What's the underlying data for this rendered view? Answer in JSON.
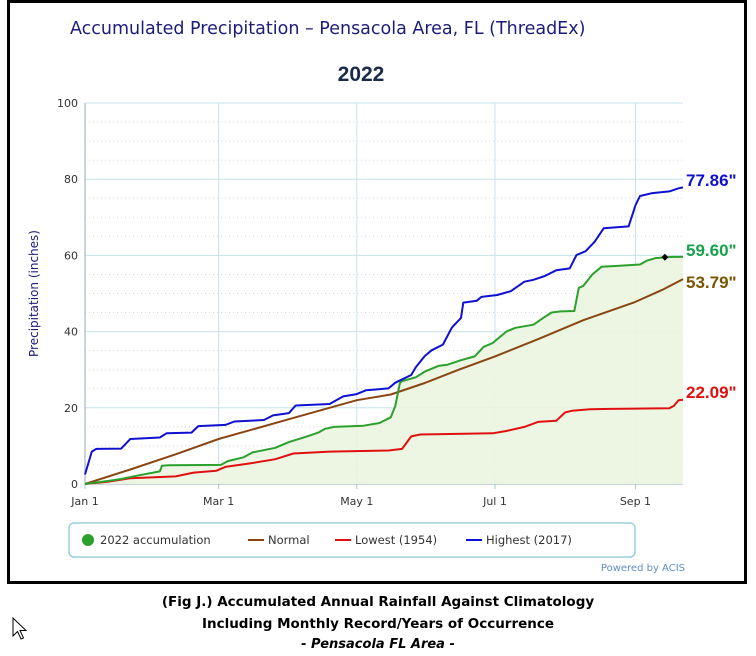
{
  "chart_data": {
    "type": "line",
    "title": "Accumulated Precipitation – Pensacola Area, FL (ThreadEx)",
    "subtitle": "2022",
    "ylabel": "Precipitation (inches)",
    "xlabel": "",
    "ylim": [
      0,
      100
    ],
    "yticks": [
      "0",
      "20",
      "40",
      "60",
      "80",
      "100"
    ],
    "xticks": [
      {
        "label": "Jan 1",
        "day": 0
      },
      {
        "label": "Mar 1",
        "day": 59
      },
      {
        "label": "May 1",
        "day": 120
      },
      {
        "label": "Jul 1",
        "day": 181
      },
      {
        "label": "Sep 1",
        "day": 243
      }
    ],
    "xlim_days": [
      0,
      264
    ],
    "grid": true,
    "legend_placement": "bottom",
    "series": [
      {
        "name": "Highest (2017)",
        "color": "#1010d0",
        "end_label": "77.86\"",
        "points": [
          [
            0,
            2.5
          ],
          [
            3,
            8.5
          ],
          [
            5,
            9.2
          ],
          [
            16,
            9.3
          ],
          [
            20,
            11.8
          ],
          [
            33,
            12.2
          ],
          [
            36,
            13.3
          ],
          [
            47,
            13.5
          ],
          [
            50,
            15.2
          ],
          [
            62,
            15.5
          ],
          [
            66,
            16.4
          ],
          [
            79,
            16.8
          ],
          [
            83,
            18.0
          ],
          [
            90,
            18.6
          ],
          [
            93,
            20.6
          ],
          [
            108,
            21.0
          ],
          [
            114,
            23.0
          ],
          [
            120,
            23.6
          ],
          [
            124,
            24.6
          ],
          [
            134,
            25.1
          ],
          [
            137,
            26.6
          ],
          [
            144,
            28.6
          ],
          [
            146,
            30.6
          ],
          [
            150,
            33.6
          ],
          [
            153,
            35.1
          ],
          [
            158,
            36.6
          ],
          [
            162,
            41.1
          ],
          [
            166,
            43.6
          ],
          [
            167,
            47.6
          ],
          [
            173,
            48.1
          ],
          [
            175,
            49.1
          ],
          [
            182,
            49.6
          ],
          [
            188,
            50.6
          ],
          [
            194,
            53.1
          ],
          [
            198,
            53.6
          ],
          [
            203,
            54.6
          ],
          [
            208,
            56.1
          ],
          [
            214,
            56.6
          ],
          [
            217,
            60.1
          ],
          [
            221,
            61.1
          ],
          [
            225,
            63.6
          ],
          [
            229,
            67.1
          ],
          [
            240,
            67.6
          ],
          [
            243,
            73.1
          ],
          [
            245,
            75.6
          ],
          [
            250,
            76.3
          ],
          [
            258,
            76.8
          ],
          [
            262,
            77.6
          ],
          [
            264,
            77.86
          ]
        ]
      },
      {
        "name": "2022 accumulation",
        "color": "#2ca02c",
        "end_label": "59.60\"",
        "points": [
          [
            0,
            0
          ],
          [
            10,
            0.8
          ],
          [
            16,
            1.3
          ],
          [
            24,
            2.3
          ],
          [
            33,
            3.3
          ],
          [
            34,
            4.8
          ],
          [
            37,
            4.9
          ],
          [
            60,
            5.0
          ],
          [
            63,
            6.0
          ],
          [
            70,
            7.0
          ],
          [
            74,
            8.3
          ],
          [
            84,
            9.5
          ],
          [
            90,
            11.0
          ],
          [
            98,
            12.5
          ],
          [
            103,
            13.5
          ],
          [
            106,
            14.5
          ],
          [
            110,
            15.0
          ],
          [
            123,
            15.3
          ],
          [
            130,
            16.0
          ],
          [
            135,
            17.5
          ],
          [
            137,
            20.5
          ],
          [
            139,
            26.5
          ],
          [
            140,
            27.0
          ],
          [
            146,
            28.0
          ],
          [
            150,
            29.5
          ],
          [
            156,
            31.0
          ],
          [
            160,
            31.3
          ],
          [
            166,
            32.5
          ],
          [
            172,
            33.5
          ],
          [
            176,
            36.0
          ],
          [
            180,
            37.0
          ],
          [
            186,
            40.0
          ],
          [
            190,
            41.0
          ],
          [
            198,
            41.8
          ],
          [
            202,
            43.5
          ],
          [
            206,
            45.0
          ],
          [
            210,
            45.3
          ],
          [
            216,
            45.4
          ],
          [
            218,
            51.5
          ],
          [
            220,
            52.0
          ],
          [
            224,
            55.0
          ],
          [
            228,
            57.0
          ],
          [
            236,
            57.3
          ],
          [
            245,
            57.6
          ],
          [
            248,
            58.6
          ],
          [
            252,
            59.3
          ],
          [
            256,
            59.5
          ],
          [
            260,
            59.6
          ],
          [
            264,
            59.6
          ]
        ],
        "end_marker_day": 256
      },
      {
        "name": "Normal",
        "color": "#8b4513",
        "end_label": "53.79\"",
        "points": [
          [
            0,
            0
          ],
          [
            20,
            3.8
          ],
          [
            40,
            7.8
          ],
          [
            59,
            11.8
          ],
          [
            90,
            17.0
          ],
          [
            105,
            19.5
          ],
          [
            120,
            22.0
          ],
          [
            135,
            23.5
          ],
          [
            150,
            26.5
          ],
          [
            165,
            30.0
          ],
          [
            181,
            33.5
          ],
          [
            200,
            38.0
          ],
          [
            220,
            43.0
          ],
          [
            243,
            47.8
          ],
          [
            255,
            51.0
          ],
          [
            264,
            53.79
          ]
        ]
      },
      {
        "name": "Lowest (1954)",
        "color": "#e01010",
        "end_label": "22.09\"",
        "points": [
          [
            0,
            0
          ],
          [
            10,
            0.6
          ],
          [
            20,
            1.5
          ],
          [
            40,
            2.0
          ],
          [
            48,
            3.0
          ],
          [
            58,
            3.5
          ],
          [
            62,
            4.5
          ],
          [
            74,
            5.5
          ],
          [
            84,
            6.5
          ],
          [
            92,
            8.0
          ],
          [
            108,
            8.5
          ],
          [
            134,
            8.8
          ],
          [
            140,
            9.2
          ],
          [
            144,
            12.5
          ],
          [
            148,
            13.0
          ],
          [
            180,
            13.3
          ],
          [
            186,
            13.9
          ],
          [
            194,
            15.0
          ],
          [
            200,
            16.3
          ],
          [
            208,
            16.6
          ],
          [
            212,
            18.8
          ],
          [
            215,
            19.2
          ],
          [
            223,
            19.6
          ],
          [
            232,
            19.7
          ],
          [
            258,
            19.9
          ],
          [
            260,
            20.5
          ],
          [
            262,
            22.0
          ],
          [
            264,
            22.09
          ]
        ]
      }
    ],
    "legend": [
      {
        "label": "2022 accumulation",
        "color": "#2ca02c",
        "symbol": "dot"
      },
      {
        "label": "Normal",
        "color": "#8b4513",
        "symbol": "line"
      },
      {
        "label": "Lowest (1954)",
        "color": "#e01010",
        "symbol": "line"
      },
      {
        "label": "Highest (2017)",
        "color": "#1010d0",
        "symbol": "line"
      }
    ],
    "credit": "Powered by ACIS"
  },
  "caption": {
    "line1": "(Fig J.) Accumulated Annual Rainfall Against  Climatology",
    "line2": "Including Monthly Record/Years of Occurrence",
    "line3": "- Pensacola FL Area -"
  }
}
